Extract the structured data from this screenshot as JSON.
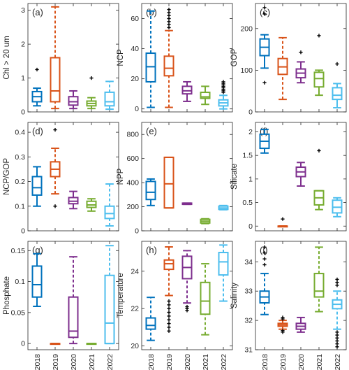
{
  "chart_data": {
    "type": "box",
    "categories": [
      "2018",
      "2019",
      "2020",
      "2021",
      "2022"
    ],
    "series_colors": [
      "#0072BD",
      "#D95319",
      "#7E2F8E",
      "#77AC30",
      "#4DBEEE"
    ],
    "panels": [
      {
        "label": "(a)",
        "ylabel": "Chl > 20 um",
        "ylim": [
          0,
          3.2
        ],
        "yticks": [
          0,
          1,
          2,
          3
        ],
        "boxes": [
          {
            "whisker_low": 0.18,
            "q1": 0.3,
            "median": 0.45,
            "q3": 0.6,
            "whisker_high": 0.7,
            "outliers": [
              1.25
            ],
            "dashed": false
          },
          {
            "whisker_low": 0.1,
            "q1": 0.3,
            "median": 0.62,
            "q3": 1.6,
            "whisker_high": 3.1,
            "outliers": [],
            "dashed": true
          },
          {
            "whisker_low": 0.1,
            "q1": 0.2,
            "median": 0.3,
            "q3": 0.45,
            "whisker_high": 0.62,
            "outliers": [],
            "dashed": false
          },
          {
            "whisker_low": 0.1,
            "q1": 0.18,
            "median": 0.25,
            "q3": 0.32,
            "whisker_high": 0.42,
            "outliers": [
              1.0
            ],
            "dashed": false
          },
          {
            "whisker_low": 0.08,
            "q1": 0.18,
            "median": 0.3,
            "q3": 0.58,
            "whisker_high": 0.9,
            "outliers": [],
            "dashed": true
          }
        ]
      },
      {
        "label": "(b)",
        "ylabel": "NCP",
        "ylim": [
          -2,
          70
        ],
        "yticks": [
          0,
          20,
          40,
          60
        ],
        "boxes": [
          {
            "whisker_low": 1,
            "q1": 18,
            "median": 28,
            "q3": 37,
            "whisker_high": 65,
            "outliers": [],
            "dashed": true
          },
          {
            "whisker_low": 1,
            "q1": 22,
            "median": 27,
            "q3": 35,
            "whisker_high": 52,
            "outliers": [
              54,
              56,
              58,
              60,
              62,
              64,
              66
            ],
            "dashed": true
          },
          {
            "whisker_low": 5,
            "q1": 10,
            "median": 12,
            "q3": 15,
            "whisker_high": 18,
            "outliers": [],
            "dashed": false
          },
          {
            "whisker_low": 3,
            "q1": 7,
            "median": 8,
            "q3": 11,
            "whisker_high": 15,
            "outliers": [],
            "dashed": false
          },
          {
            "whisker_low": 0,
            "q1": 2,
            "median": 4,
            "q3": 6,
            "whisker_high": 9,
            "outliers": [
              11,
              12,
              13,
              14,
              15,
              16,
              17,
              18
            ],
            "dashed": false
          }
        ]
      },
      {
        "label": "(c)",
        "ylabel": "GOP",
        "ylim": [
          0,
          260
        ],
        "yticks": [
          0,
          100,
          200
        ],
        "boxes": [
          {
            "whisker_low": 105,
            "q1": 135,
            "median": 155,
            "q3": 175,
            "whisker_high": 185,
            "outliers": [
              70,
              235,
              250
            ],
            "dashed": false
          },
          {
            "whisker_low": 30,
            "q1": 90,
            "median": 108,
            "q3": 128,
            "whisker_high": 178,
            "outliers": [],
            "dashed": true
          },
          {
            "whisker_low": 70,
            "q1": 82,
            "median": 93,
            "q3": 103,
            "whisker_high": 120,
            "outliers": [
              143
            ],
            "dashed": false
          },
          {
            "whisker_low": 40,
            "q1": 60,
            "median": 80,
            "q3": 95,
            "whisker_high": 100,
            "outliers": [
              183
            ],
            "dashed": false
          },
          {
            "whisker_low": 10,
            "q1": 30,
            "median": 40,
            "q3": 58,
            "whisker_high": 68,
            "outliers": [
              115
            ],
            "dashed": false
          }
        ]
      },
      {
        "label": "(d)",
        "ylabel": "NCP/GOP",
        "ylim": [
          0,
          0.44
        ],
        "yticks": [
          0,
          0.1,
          0.2,
          0.3,
          0.4
        ],
        "boxes": [
          {
            "whisker_low": 0.1,
            "q1": 0.145,
            "median": 0.175,
            "q3": 0.22,
            "whisker_high": 0.26,
            "outliers": [],
            "dashed": false
          },
          {
            "whisker_low": 0.15,
            "q1": 0.22,
            "median": 0.25,
            "q3": 0.28,
            "whisker_high": 0.335,
            "outliers": [
              0.41,
              0.1
            ],
            "dashed": true
          },
          {
            "whisker_low": 0.09,
            "q1": 0.11,
            "median": 0.12,
            "q3": 0.135,
            "whisker_high": 0.16,
            "outliers": [],
            "dashed": false
          },
          {
            "whisker_low": 0.08,
            "q1": 0.095,
            "median": 0.105,
            "q3": 0.12,
            "whisker_high": 0.13,
            "outliers": [],
            "dashed": false
          },
          {
            "whisker_low": 0.02,
            "q1": 0.05,
            "median": 0.07,
            "q3": 0.1,
            "whisker_high": 0.19,
            "outliers": [],
            "dashed": true
          }
        ]
      },
      {
        "label": "(e)",
        "ylabel": "NPP",
        "ylim": [
          0,
          900
        ],
        "yticks": [
          0,
          200,
          400,
          600,
          800
        ],
        "boxes": [
          {
            "whisker_low": 210,
            "q1": 260,
            "median": 320,
            "q3": 410,
            "whisker_high": 430,
            "outliers": [],
            "dashed": false
          },
          {
            "whisker_low": 190,
            "q1": 190,
            "median": 390,
            "q3": 610,
            "whisker_high": 610,
            "outliers": [],
            "dashed": false
          },
          {
            "whisker_low": 220,
            "q1": 220,
            "median": 225,
            "q3": 230,
            "whisker_high": 230,
            "outliers": [],
            "dashed": false
          },
          {
            "whisker_low": 60,
            "q1": 65,
            "median": 80,
            "q3": 95,
            "whisker_high": 100,
            "outliers": [],
            "dashed": false
          },
          {
            "whisker_low": 175,
            "q1": 178,
            "median": 190,
            "q3": 205,
            "whisker_high": 210,
            "outliers": [],
            "dashed": false
          }
        ]
      },
      {
        "label": "(f)",
        "ylabel": "Silicate",
        "ylim": [
          -0.1,
          2.2
        ],
        "yticks": [
          0,
          0.5,
          1,
          1.5,
          2
        ],
        "boxes": [
          {
            "whisker_low": 1.55,
            "q1": 1.65,
            "median": 1.8,
            "q3": 1.95,
            "whisker_high": 2.05,
            "outliers": [],
            "dashed": false
          },
          {
            "whisker_low": 0,
            "q1": 0,
            "median": 0,
            "q3": 0,
            "whisker_high": 0,
            "outliers": [
              0.15
            ],
            "dashed": false
          },
          {
            "whisker_low": 0.85,
            "q1": 1.05,
            "median": 1.15,
            "q3": 1.25,
            "whisker_high": 1.35,
            "outliers": [],
            "dashed": false
          },
          {
            "whisker_low": 0.35,
            "q1": 0.45,
            "median": 0.6,
            "q3": 0.75,
            "whisker_high": 0.75,
            "outliers": [
              1.6
            ],
            "dashed": false
          },
          {
            "whisker_low": 0.2,
            "q1": 0.28,
            "median": 0.4,
            "q3": 0.55,
            "whisker_high": 0.6,
            "outliers": [],
            "dashed": false
          }
        ]
      },
      {
        "label": "(g)",
        "ylabel": "Phosphate",
        "ylim": [
          -0.01,
          0.165
        ],
        "yticks": [
          0,
          0.05,
          0.1,
          0.15
        ],
        "boxes": [
          {
            "whisker_low": 0.06,
            "q1": 0.075,
            "median": 0.095,
            "q3": 0.125,
            "whisker_high": 0.145,
            "outliers": [],
            "dashed": false
          },
          {
            "whisker_low": 0,
            "q1": 0,
            "median": 0,
            "q3": 0,
            "whisker_high": 0,
            "outliers": [],
            "dashed": false
          },
          {
            "whisker_low": 0,
            "q1": 0.01,
            "median": 0.02,
            "q3": 0.075,
            "whisker_high": 0.14,
            "outliers": [],
            "dashed": true
          },
          {
            "whisker_low": 0,
            "q1": 0,
            "median": 0,
            "q3": 0,
            "whisker_high": 0,
            "outliers": [],
            "dashed": false
          },
          {
            "whisker_low": 0,
            "q1": 0,
            "median": 0.033,
            "q3": 0.11,
            "whisker_high": 0.158,
            "outliers": [],
            "dashed": true
          }
        ]
      },
      {
        "label": "(h)",
        "ylabel": "Temperature",
        "ylim": [
          19.8,
          25.6
        ],
        "yticks": [
          20,
          22,
          24
        ],
        "boxes": [
          {
            "whisker_low": 20.3,
            "q1": 20.9,
            "median": 21.1,
            "q3": 21.5,
            "whisker_high": 22.6,
            "outliers": [],
            "dashed": true
          },
          {
            "whisker_low": 22.7,
            "q1": 24.1,
            "median": 24.4,
            "q3": 24.6,
            "whisker_high": 25.3,
            "outliers": [
              20.8,
              21.0,
              21.2,
              21.4,
              21.6,
              21.8,
              22.0,
              22.2,
              22.4
            ],
            "dashed": true
          },
          {
            "whisker_low": 22.3,
            "q1": 23.6,
            "median": 24.2,
            "q3": 24.8,
            "whisker_high": 25.1,
            "outliers": [
              21.9,
              22.0,
              22.1
            ],
            "dashed": true
          },
          {
            "whisker_low": 20.6,
            "q1": 21.7,
            "median": 22.4,
            "q3": 23.4,
            "whisker_high": 24.4,
            "outliers": [],
            "dashed": true
          },
          {
            "whisker_low": 22.4,
            "q1": 23.8,
            "median": 24.5,
            "q3": 25.0,
            "whisker_high": 25.4,
            "outliers": [],
            "dashed": true
          }
        ]
      },
      {
        "label": "(i)",
        "ylabel": "Salinity",
        "ylim": [
          31,
          34.7
        ],
        "yticks": [
          31,
          32,
          33,
          34
        ],
        "boxes": [
          {
            "whisker_low": 32.2,
            "q1": 32.6,
            "median": 32.8,
            "q3": 33.0,
            "whisker_high": 33.6,
            "outliers": [
              33.9,
              34.1,
              34.3,
              34.5
            ],
            "dashed": true
          },
          {
            "whisker_low": 31.7,
            "q1": 31.8,
            "median": 31.85,
            "q3": 31.9,
            "whisker_high": 32.0,
            "outliers": [
              31.6,
              31.65,
              32.05,
              32.1
            ],
            "dashed": false
          },
          {
            "whisker_low": 31.6,
            "q1": 31.7,
            "median": 31.8,
            "q3": 31.9,
            "whisker_high": 32.1,
            "outliers": [],
            "dashed": false
          },
          {
            "whisker_low": 32.3,
            "q1": 32.8,
            "median": 33.0,
            "q3": 33.6,
            "whisker_high": 34.5,
            "outliers": [],
            "dashed": true
          },
          {
            "whisker_low": 31.7,
            "q1": 32.4,
            "median": 32.55,
            "q3": 32.7,
            "whisker_high": 33.0,
            "outliers": [
              31.1,
              31.2,
              31.3,
              31.4,
              31.5,
              31.6,
              33.2,
              33.3,
              33.4
            ],
            "dashed": true
          }
        ]
      }
    ]
  }
}
